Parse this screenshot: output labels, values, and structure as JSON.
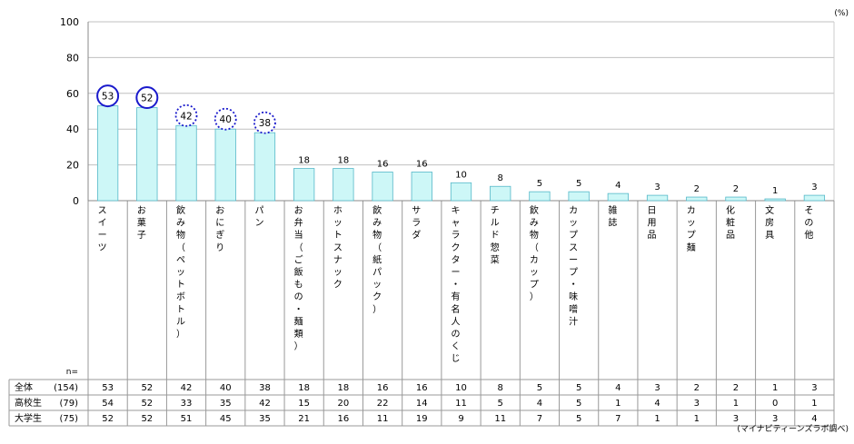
{
  "chart_data": {
    "type": "bar",
    "unit": "(%)",
    "source": "(マイナビティーンズラボ調べ)",
    "ylim": [
      0,
      100
    ],
    "yticks": [
      0,
      20,
      40,
      60,
      80,
      100
    ],
    "grid": true,
    "categories": [
      "スイーツ",
      "お菓子",
      "飲み物（ペットボトル）",
      "おにぎり",
      "パン",
      "お弁当（ご飯もの・麺類）",
      "ホットスナック",
      "飲み物（紙パック）",
      "サラダ",
      "キャラクター・有名人のくじ",
      "チルド惣菜",
      "飲み物（カップ）",
      "カップスープ・味噌汁",
      "雑誌",
      "日用品",
      "カップ麺",
      "化粧品",
      "文房具",
      "その他"
    ],
    "values": [
      53,
      52,
      42,
      40,
      38,
      18,
      18,
      16,
      16,
      10,
      8,
      5,
      5,
      4,
      3,
      2,
      2,
      1,
      3
    ],
    "highlighted": {
      "solid": [
        "スイーツ",
        "お菓子"
      ],
      "dotted": [
        "飲み物（ペットボトル）",
        "おにぎり",
        "パン"
      ]
    },
    "colors": {
      "bar_fill": "#cdf7f7",
      "bar_stroke": "#55b8c8",
      "circle": "#1a1acc",
      "grid": "#c0c0c0"
    },
    "table": {
      "n_label": "n=",
      "rows": [
        {
          "group": "全体",
          "n": "(154)",
          "values": [
            53,
            52,
            42,
            40,
            38,
            18,
            18,
            16,
            16,
            10,
            8,
            5,
            5,
            4,
            3,
            2,
            2,
            1,
            3
          ]
        },
        {
          "group": "高校生",
          "n": "(79)",
          "values": [
            54,
            52,
            33,
            35,
            42,
            15,
            20,
            22,
            14,
            11,
            5,
            4,
            5,
            1,
            4,
            3,
            1,
            0,
            1
          ]
        },
        {
          "group": "大学生",
          "n": "(75)",
          "values": [
            52,
            52,
            51,
            45,
            35,
            21,
            16,
            11,
            19,
            9,
            11,
            7,
            5,
            7,
            1,
            1,
            3,
            3,
            4
          ]
        }
      ]
    }
  }
}
